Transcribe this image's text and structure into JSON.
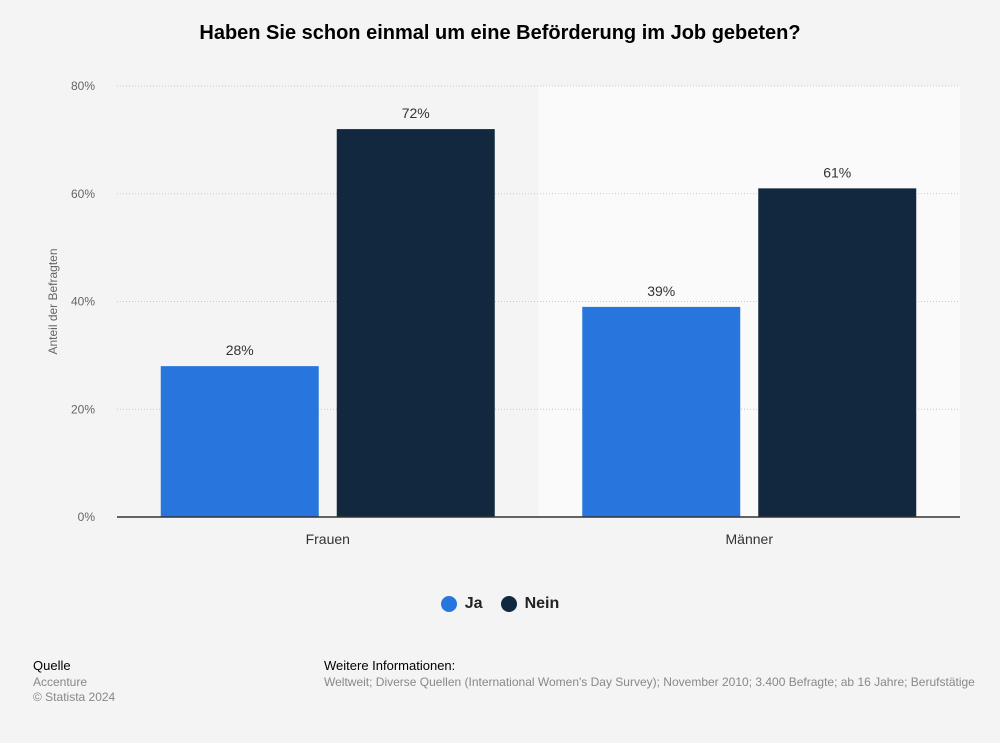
{
  "chart_data": {
    "type": "bar",
    "title": "Haben Sie schon einmal um eine Beförderung im Job gebeten?",
    "ylabel": "Anteil der Befragten",
    "xlabel": "",
    "ylim": [
      0,
      80
    ],
    "yticks": [
      0,
      20,
      40,
      60,
      80
    ],
    "ytick_labels": [
      "0%",
      "20%",
      "40%",
      "60%",
      "80%"
    ],
    "categories": [
      "Frauen",
      "Männer"
    ],
    "series": [
      {
        "name": "Ja",
        "color": "#2876dd",
        "values": [
          28,
          39
        ],
        "labels": [
          "28%",
          "39%"
        ]
      },
      {
        "name": "Nein",
        "color": "#12283f",
        "values": [
          72,
          61
        ],
        "labels": [
          "72%",
          "61%"
        ]
      }
    ],
    "grid": true,
    "legend_position": "bottom-center"
  },
  "footer": {
    "source_heading": "Quelle",
    "source_name": "Accenture",
    "copyright": "© Statista 2024",
    "info_heading": "Weitere Informationen:",
    "info_text": "Weltweit; Diverse Quellen (International Women's Day Survey); November 2010; 3.400 Befragte; ab 16 Jahre; Berufstätige"
  }
}
